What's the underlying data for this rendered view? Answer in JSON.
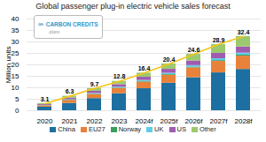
{
  "chart_data": {
    "type": "bar",
    "stacked": true,
    "title": "Global passenger plug-in electric vehicle sales forecast",
    "ylabel": "Million units",
    "categories": [
      "2020",
      "2021",
      "2022",
      "2023",
      "2024f",
      "2025f",
      "2026f",
      "2027f",
      "2028f"
    ],
    "series": [
      {
        "name": "China",
        "color": "#1c6fa0",
        "values": [
          1.55,
          3.2,
          5.3,
          7.4,
          9.6,
          12.0,
          14.4,
          16.5,
          18.0
        ]
      },
      {
        "name": "EU27",
        "color": "#e8823a",
        "values": [
          0.6,
          1.3,
          1.8,
          2.3,
          2.9,
          3.5,
          4.3,
          5.0,
          5.8
        ]
      },
      {
        "name": "Norway",
        "color": "#3a9e5f",
        "values": [
          0.08,
          0.12,
          0.15,
          0.18,
          0.22,
          0.27,
          0.32,
          0.37,
          0.42
        ]
      },
      {
        "name": "UK",
        "color": "#5ecde8",
        "values": [
          0.12,
          0.22,
          0.3,
          0.38,
          0.48,
          0.58,
          0.68,
          0.8,
          0.9
        ]
      },
      {
        "name": "US",
        "color": "#a05cb0",
        "values": [
          0.35,
          0.68,
          0.95,
          1.12,
          1.4,
          1.7,
          2.0,
          2.35,
          2.7
        ]
      },
      {
        "name": "Other",
        "color": "#9dc96e",
        "values": [
          0.4,
          0.78,
          1.2,
          1.42,
          1.8,
          2.35,
          2.9,
          3.88,
          4.58
        ]
      }
    ],
    "totals": {
      "type": "line",
      "color": "#f5c518",
      "data_labels": true,
      "values": [
        3.1,
        6.3,
        9.7,
        12.8,
        16.4,
        20.4,
        24.6,
        28.9,
        32.4
      ]
    },
    "annotations": [
      "∞",
      "CARBON CREDITS",
      ".com"
    ],
    "ylim": [
      0,
      40
    ],
    "yticks": [
      0,
      5,
      10,
      15,
      20,
      25,
      30,
      35,
      40
    ],
    "grid": true,
    "legend": "bottom"
  }
}
